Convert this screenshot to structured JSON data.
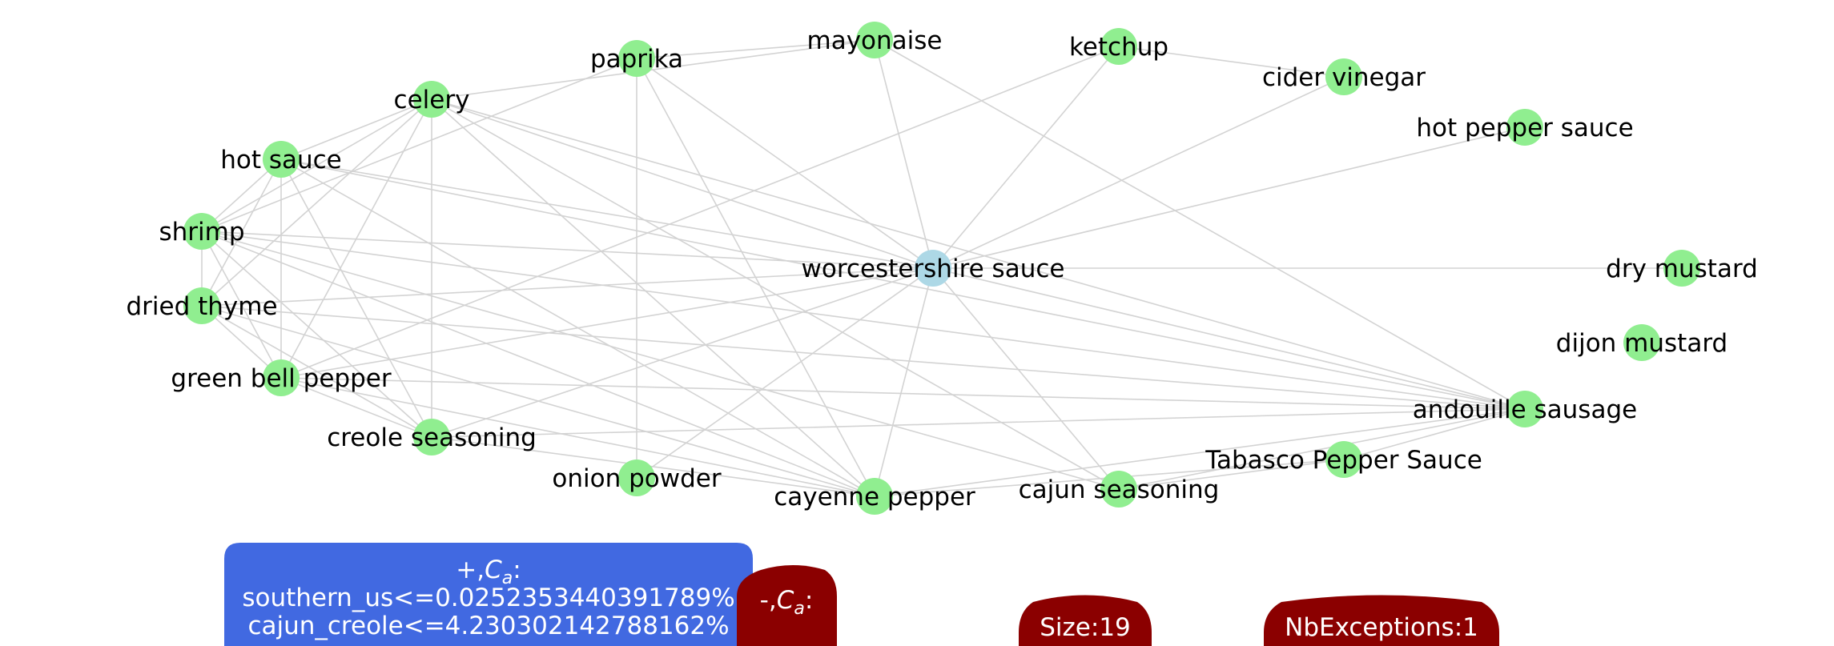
{
  "colors": {
    "center_node": "#add8e6",
    "neighbor_node": "#90ee90",
    "edge": "#d3d3d3",
    "positive_box": "#4169e1",
    "negative_box": "#8b0000",
    "label": "#000000",
    "box_text": "#ffffff"
  },
  "graph": {
    "center": "worcestershire sauce",
    "nodes": [
      {
        "id": "worcestershire sauce",
        "role": "center"
      },
      {
        "id": "paprika",
        "role": "neighbor"
      },
      {
        "id": "mayonaise",
        "role": "neighbor"
      },
      {
        "id": "ketchup",
        "role": "neighbor"
      },
      {
        "id": "cider vinegar",
        "role": "neighbor"
      },
      {
        "id": "hot pepper sauce",
        "role": "neighbor"
      },
      {
        "id": "celery",
        "role": "neighbor"
      },
      {
        "id": "hot sauce",
        "role": "neighbor"
      },
      {
        "id": "shrimp",
        "role": "neighbor"
      },
      {
        "id": "dried thyme",
        "role": "neighbor"
      },
      {
        "id": "green bell pepper",
        "role": "neighbor"
      },
      {
        "id": "creole seasoning",
        "role": "neighbor"
      },
      {
        "id": "onion powder",
        "role": "neighbor"
      },
      {
        "id": "cayenne pepper",
        "role": "neighbor"
      },
      {
        "id": "cajun seasoning",
        "role": "neighbor"
      },
      {
        "id": "Tabasco Pepper Sauce",
        "role": "neighbor"
      },
      {
        "id": "andouille sausage",
        "role": "neighbor"
      },
      {
        "id": "dijon mustard",
        "role": "neighbor"
      },
      {
        "id": "dry mustard",
        "role": "neighbor"
      }
    ],
    "edges": [
      [
        "worcestershire sauce",
        "paprika"
      ],
      [
        "worcestershire sauce",
        "mayonaise"
      ],
      [
        "worcestershire sauce",
        "ketchup"
      ],
      [
        "worcestershire sauce",
        "cider vinegar"
      ],
      [
        "worcestershire sauce",
        "hot pepper sauce"
      ],
      [
        "worcestershire sauce",
        "dry mustard"
      ],
      [
        "worcestershire sauce",
        "andouille sausage"
      ],
      [
        "worcestershire sauce",
        "cajun seasoning"
      ],
      [
        "worcestershire sauce",
        "cayenne pepper"
      ],
      [
        "worcestershire sauce",
        "onion powder"
      ],
      [
        "worcestershire sauce",
        "creole seasoning"
      ],
      [
        "worcestershire sauce",
        "green bell pepper"
      ],
      [
        "worcestershire sauce",
        "dried thyme"
      ],
      [
        "worcestershire sauce",
        "shrimp"
      ],
      [
        "worcestershire sauce",
        "hot sauce"
      ],
      [
        "worcestershire sauce",
        "celery"
      ],
      [
        "paprika",
        "mayonaise"
      ],
      [
        "paprika",
        "onion powder"
      ],
      [
        "paprika",
        "cayenne pepper"
      ],
      [
        "paprika",
        "shrimp"
      ],
      [
        "mayonaise",
        "celery"
      ],
      [
        "mayonaise",
        "andouille sausage"
      ],
      [
        "ketchup",
        "cider vinegar"
      ],
      [
        "ketchup",
        "green bell pepper"
      ],
      [
        "celery",
        "hot sauce"
      ],
      [
        "celery",
        "shrimp"
      ],
      [
        "celery",
        "dried thyme"
      ],
      [
        "celery",
        "green bell pepper"
      ],
      [
        "celery",
        "creole seasoning"
      ],
      [
        "celery",
        "cayenne pepper"
      ],
      [
        "celery",
        "cajun seasoning"
      ],
      [
        "celery",
        "andouille sausage"
      ],
      [
        "hot sauce",
        "shrimp"
      ],
      [
        "hot sauce",
        "dried thyme"
      ],
      [
        "hot sauce",
        "green bell pepper"
      ],
      [
        "hot sauce",
        "creole seasoning"
      ],
      [
        "hot sauce",
        "cayenne pepper"
      ],
      [
        "hot sauce",
        "andouille sausage"
      ],
      [
        "shrimp",
        "dried thyme"
      ],
      [
        "shrimp",
        "green bell pepper"
      ],
      [
        "shrimp",
        "creole seasoning"
      ],
      [
        "shrimp",
        "cayenne pepper"
      ],
      [
        "shrimp",
        "cajun seasoning"
      ],
      [
        "shrimp",
        "andouille sausage"
      ],
      [
        "dried thyme",
        "green bell pepper"
      ],
      [
        "dried thyme",
        "creole seasoning"
      ],
      [
        "dried thyme",
        "cayenne pepper"
      ],
      [
        "dried thyme",
        "andouille sausage"
      ],
      [
        "green bell pepper",
        "creole seasoning"
      ],
      [
        "green bell pepper",
        "cayenne pepper"
      ],
      [
        "green bell pepper",
        "andouille sausage"
      ],
      [
        "creole seasoning",
        "cayenne pepper"
      ],
      [
        "creole seasoning",
        "andouille sausage"
      ],
      [
        "cayenne pepper",
        "andouille sausage"
      ],
      [
        "cayenne pepper",
        "Tabasco Pepper Sauce"
      ],
      [
        "cajun seasoning",
        "andouille sausage"
      ],
      [
        "cajun seasoning",
        "Tabasco Pepper Sauce"
      ],
      [
        "Tabasco Pepper Sauce",
        "andouille sausage"
      ]
    ]
  },
  "info_boxes": {
    "positive": {
      "header": "+,",
      "symbol": "C",
      "subscript": "a",
      "suffix": ":",
      "lines": [
        "southern_us<=0.0252353440391789%",
        "cajun_creole<=4.230302142788162%"
      ]
    },
    "negative": {
      "header": "-,",
      "symbol": "C",
      "subscript": "a",
      "suffix": ":"
    },
    "size_label": "Size:19",
    "exceptions_label": "NbExceptions:1"
  }
}
